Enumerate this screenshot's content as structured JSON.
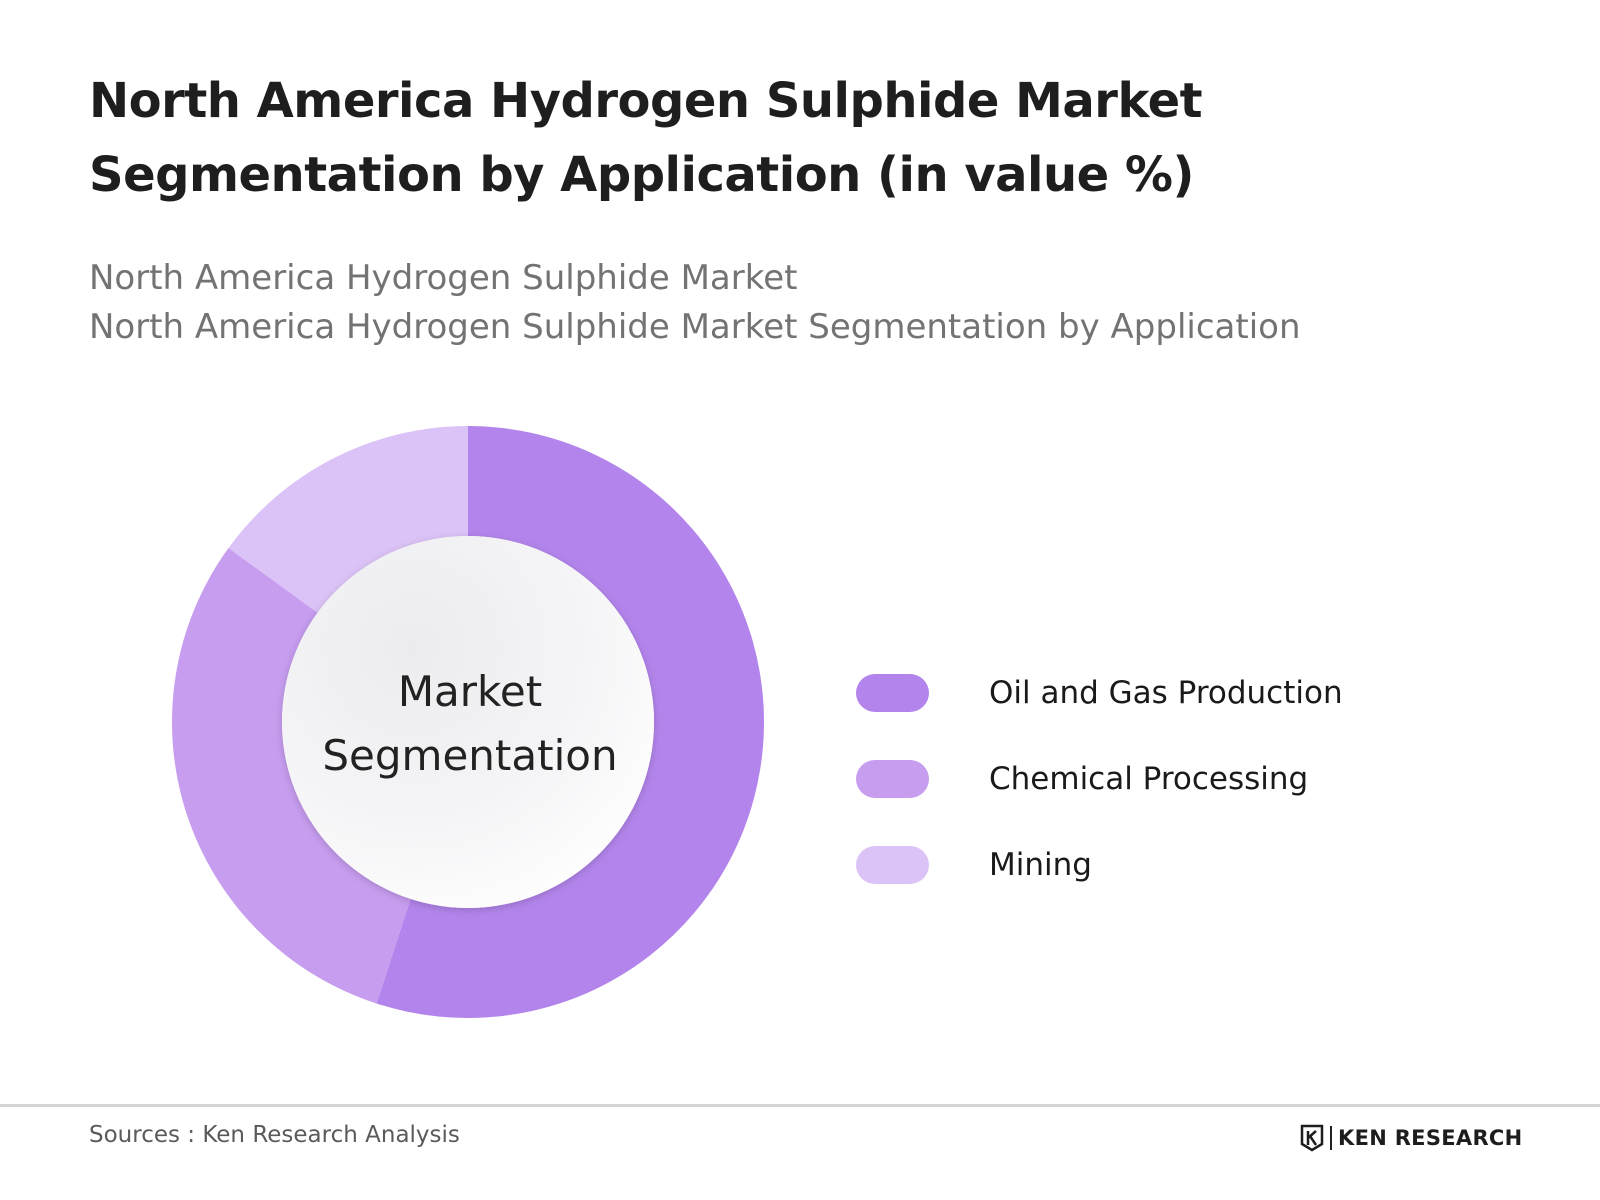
{
  "header": {
    "title": "North America Hydrogen Sulphide Market Segmentation by Application (in value %)",
    "subtitle_line1": "North America Hydrogen Sulphide Market",
    "subtitle_line2": "North America Hydrogen Sulphide Market Segmentation by Application"
  },
  "chart_data": {
    "type": "pie",
    "variant": "donut",
    "center_label": "Market Segmentation",
    "categories": [
      "Oil and Gas Production",
      "Chemical Processing",
      "Mining"
    ],
    "values": [
      55,
      30,
      15
    ],
    "colors": [
      "#b385ec",
      "#c79df0",
      "#dcc3f7"
    ],
    "legend_position": "right"
  },
  "footer": {
    "sources": "Sources : Ken Research Analysis",
    "brand": "KEN RESEARCH"
  }
}
